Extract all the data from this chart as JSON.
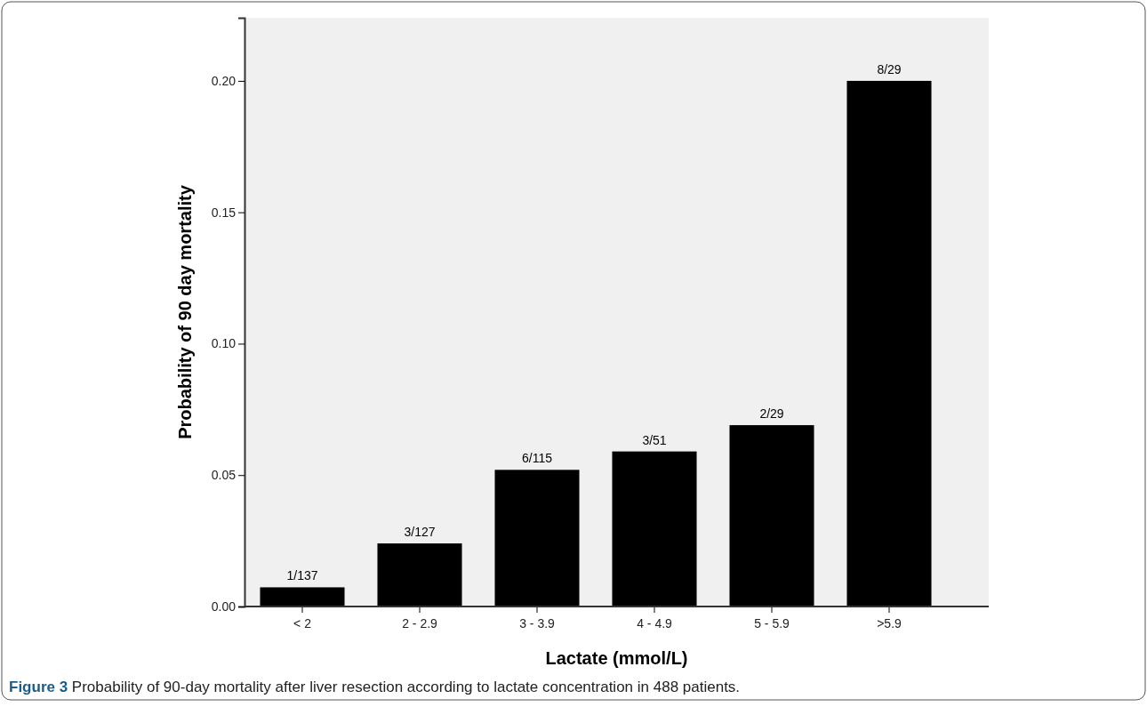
{
  "chart_data": {
    "type": "bar",
    "xlabel": "Lactate (mmol/L)",
    "ylabel": "Probability of 90 day mortality",
    "categories": [
      "< 2",
      "2 - 2.9",
      "3 - 3.9",
      "4 - 4.9",
      "5 - 5.9",
      ">5.9"
    ],
    "values": [
      0.0073,
      0.024,
      0.052,
      0.059,
      0.069,
      0.2
    ],
    "value_labels": [
      "1/137",
      "3/127",
      "6/115",
      "3/51",
      "2/29",
      "8/29"
    ],
    "color": "#000000",
    "ylim": [
      0,
      0.224
    ],
    "yticks": [
      {
        "value": 0,
        "label": "0.00"
      },
      {
        "value": 0.05,
        "label": "0.05"
      },
      {
        "value": 0.1,
        "label": "0.10"
      },
      {
        "value": 0.15,
        "label": "0.15"
      },
      {
        "value": 0.2,
        "label": "0.20"
      }
    ],
    "grid": false,
    "annotations": [
      "Figure 3 Probability of 90-day mortality after liver resection according to lactate concentration in 488 patients."
    ]
  }
}
